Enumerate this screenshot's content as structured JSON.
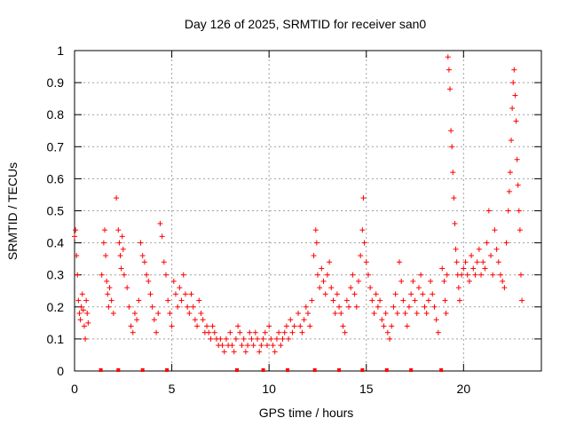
{
  "chart_data": {
    "type": "scatter",
    "title": "Day 126 of 2025, SRMTID for receiver san0",
    "xlabel": "GPS time / hours",
    "ylabel": "SRMTID / TECUs",
    "xlim": [
      0,
      24
    ],
    "ylim": [
      0,
      1
    ],
    "x_ticks": [
      0,
      5,
      10,
      15,
      20
    ],
    "y_ticks": [
      0,
      0.1,
      0.2,
      0.3,
      0.4,
      0.5,
      0.6,
      0.7,
      0.8,
      0.9,
      1
    ],
    "x_tick_labels": [
      "0",
      "5",
      "10",
      "15",
      "20"
    ],
    "y_tick_labels": [
      "0",
      "0.1",
      "0.2",
      "0.3",
      "0.4",
      "0.5",
      "0.6",
      "0.7",
      "0.8",
      "0.9",
      "1"
    ],
    "grid": true,
    "marker": "+",
    "marker_color": "#ff0000",
    "series": [
      {
        "name": "SRMTID",
        "points": [
          [
            0.0,
            0.42
          ],
          [
            0.05,
            0.44
          ],
          [
            0.1,
            0.36
          ],
          [
            0.15,
            0.3
          ],
          [
            0.2,
            0.22
          ],
          [
            0.25,
            0.18
          ],
          [
            0.3,
            0.16
          ],
          [
            0.35,
            0.2
          ],
          [
            0.4,
            0.24
          ],
          [
            0.45,
            0.19
          ],
          [
            0.5,
            0.14
          ],
          [
            0.55,
            0.1
          ],
          [
            0.6,
            0.22
          ],
          [
            0.65,
            0.18
          ],
          [
            0.7,
            0.15
          ],
          [
            1.4,
            0.3
          ],
          [
            1.5,
            0.4
          ],
          [
            1.55,
            0.44
          ],
          [
            1.6,
            0.36
          ],
          [
            1.65,
            0.28
          ],
          [
            1.7,
            0.24
          ],
          [
            1.75,
            0.2
          ],
          [
            1.8,
            0.26
          ],
          [
            1.9,
            0.22
          ],
          [
            2.0,
            0.18
          ],
          [
            2.15,
            0.54
          ],
          [
            2.25,
            0.44
          ],
          [
            2.3,
            0.4
          ],
          [
            2.35,
            0.36
          ],
          [
            2.4,
            0.32
          ],
          [
            2.45,
            0.42
          ],
          [
            2.5,
            0.38
          ],
          [
            2.55,
            0.3
          ],
          [
            2.7,
            0.26
          ],
          [
            2.8,
            0.2
          ],
          [
            2.9,
            0.14
          ],
          [
            3.0,
            0.12
          ],
          [
            3.1,
            0.18
          ],
          [
            3.2,
            0.16
          ],
          [
            3.3,
            0.22
          ],
          [
            3.4,
            0.4
          ],
          [
            3.5,
            0.36
          ],
          [
            3.6,
            0.34
          ],
          [
            3.7,
            0.3
          ],
          [
            3.8,
            0.28
          ],
          [
            3.9,
            0.24
          ],
          [
            4.0,
            0.2
          ],
          [
            4.1,
            0.16
          ],
          [
            4.2,
            0.12
          ],
          [
            4.3,
            0.18
          ],
          [
            4.4,
            0.46
          ],
          [
            4.5,
            0.42
          ],
          [
            4.6,
            0.34
          ],
          [
            4.7,
            0.3
          ],
          [
            4.8,
            0.22
          ],
          [
            4.9,
            0.18
          ],
          [
            5.0,
            0.14
          ],
          [
            5.1,
            0.28
          ],
          [
            5.2,
            0.24
          ],
          [
            5.3,
            0.2
          ],
          [
            5.4,
            0.26
          ],
          [
            5.5,
            0.22
          ],
          [
            5.6,
            0.3
          ],
          [
            5.7,
            0.24
          ],
          [
            5.8,
            0.2
          ],
          [
            5.9,
            0.18
          ],
          [
            6.0,
            0.24
          ],
          [
            6.1,
            0.2
          ],
          [
            6.2,
            0.16
          ],
          [
            6.3,
            0.14
          ],
          [
            6.4,
            0.22
          ],
          [
            6.5,
            0.18
          ],
          [
            6.6,
            0.16
          ],
          [
            6.7,
            0.12
          ],
          [
            6.8,
            0.14
          ],
          [
            6.9,
            0.12
          ],
          [
            7.0,
            0.1
          ],
          [
            7.1,
            0.14
          ],
          [
            7.2,
            0.12
          ],
          [
            7.3,
            0.1
          ],
          [
            7.4,
            0.08
          ],
          [
            7.5,
            0.1
          ],
          [
            7.6,
            0.08
          ],
          [
            7.7,
            0.06
          ],
          [
            7.8,
            0.1
          ],
          [
            7.9,
            0.08
          ],
          [
            8.0,
            0.12
          ],
          [
            8.1,
            0.08
          ],
          [
            8.2,
            0.06
          ],
          [
            8.3,
            0.1
          ],
          [
            8.4,
            0.14
          ],
          [
            8.5,
            0.12
          ],
          [
            8.6,
            0.08
          ],
          [
            8.7,
            0.1
          ],
          [
            8.8,
            0.06
          ],
          [
            8.9,
            0.08
          ],
          [
            9.0,
            0.12
          ],
          [
            9.1,
            0.1
          ],
          [
            9.2,
            0.08
          ],
          [
            9.3,
            0.12
          ],
          [
            9.4,
            0.1
          ],
          [
            9.5,
            0.06
          ],
          [
            9.6,
            0.08
          ],
          [
            9.7,
            0.1
          ],
          [
            9.8,
            0.12
          ],
          [
            9.9,
            0.08
          ],
          [
            10.0,
            0.14
          ],
          [
            10.1,
            0.1
          ],
          [
            10.2,
            0.08
          ],
          [
            10.3,
            0.06
          ],
          [
            10.4,
            0.1
          ],
          [
            10.5,
            0.12
          ],
          [
            10.6,
            0.08
          ],
          [
            10.7,
            0.1
          ],
          [
            10.8,
            0.12
          ],
          [
            10.9,
            0.14
          ],
          [
            11.0,
            0.1
          ],
          [
            11.1,
            0.16
          ],
          [
            11.2,
            0.12
          ],
          [
            11.3,
            0.14
          ],
          [
            11.5,
            0.18
          ],
          [
            11.6,
            0.14
          ],
          [
            11.7,
            0.12
          ],
          [
            11.8,
            0.16
          ],
          [
            11.9,
            0.2
          ],
          [
            12.0,
            0.18
          ],
          [
            12.1,
            0.14
          ],
          [
            12.2,
            0.22
          ],
          [
            12.3,
            0.36
          ],
          [
            12.4,
            0.44
          ],
          [
            12.45,
            0.4
          ],
          [
            12.5,
            0.3
          ],
          [
            12.6,
            0.26
          ],
          [
            12.7,
            0.32
          ],
          [
            12.8,
            0.28
          ],
          [
            12.9,
            0.24
          ],
          [
            13.0,
            0.3
          ],
          [
            13.1,
            0.34
          ],
          [
            13.2,
            0.26
          ],
          [
            13.3,
            0.22
          ],
          [
            13.4,
            0.18
          ],
          [
            13.5,
            0.24
          ],
          [
            13.6,
            0.2
          ],
          [
            13.7,
            0.18
          ],
          [
            13.8,
            0.14
          ],
          [
            13.9,
            0.12
          ],
          [
            14.0,
            0.22
          ],
          [
            14.1,
            0.2
          ],
          [
            14.2,
            0.26
          ],
          [
            14.3,
            0.3
          ],
          [
            14.4,
            0.24
          ],
          [
            14.5,
            0.2
          ],
          [
            14.6,
            0.28
          ],
          [
            14.7,
            0.36
          ],
          [
            14.8,
            0.44
          ],
          [
            14.85,
            0.54
          ],
          [
            14.9,
            0.4
          ],
          [
            15.0,
            0.34
          ],
          [
            15.1,
            0.3
          ],
          [
            15.2,
            0.26
          ],
          [
            15.3,
            0.22
          ],
          [
            15.4,
            0.18
          ],
          [
            15.5,
            0.24
          ],
          [
            15.6,
            0.2
          ],
          [
            15.7,
            0.22
          ],
          [
            15.8,
            0.16
          ],
          [
            15.9,
            0.14
          ],
          [
            16.0,
            0.18
          ],
          [
            16.1,
            0.12
          ],
          [
            16.2,
            0.1
          ],
          [
            16.3,
            0.14
          ],
          [
            16.4,
            0.2
          ],
          [
            16.5,
            0.24
          ],
          [
            16.6,
            0.18
          ],
          [
            16.7,
            0.34
          ],
          [
            16.8,
            0.28
          ],
          [
            16.9,
            0.22
          ],
          [
            17.0,
            0.18
          ],
          [
            17.1,
            0.14
          ],
          [
            17.2,
            0.2
          ],
          [
            17.3,
            0.24
          ],
          [
            17.4,
            0.28
          ],
          [
            17.5,
            0.22
          ],
          [
            17.6,
            0.18
          ],
          [
            17.7,
            0.26
          ],
          [
            17.8,
            0.3
          ],
          [
            17.9,
            0.24
          ],
          [
            18.0,
            0.2
          ],
          [
            18.1,
            0.18
          ],
          [
            18.2,
            0.22
          ],
          [
            18.3,
            0.28
          ],
          [
            18.4,
            0.24
          ],
          [
            18.5,
            0.2
          ],
          [
            18.6,
            0.16
          ],
          [
            18.7,
            0.12
          ],
          [
            18.9,
            0.32
          ],
          [
            19.0,
            0.28
          ],
          [
            19.05,
            0.22
          ],
          [
            19.1,
            0.18
          ],
          [
            19.15,
            0.3
          ],
          [
            19.2,
            0.98
          ],
          [
            19.25,
            0.94
          ],
          [
            19.3,
            0.88
          ],
          [
            19.35,
            0.75
          ],
          [
            19.4,
            0.7
          ],
          [
            19.45,
            0.62
          ],
          [
            19.5,
            0.54
          ],
          [
            19.55,
            0.46
          ],
          [
            19.6,
            0.38
          ],
          [
            19.65,
            0.34
          ],
          [
            19.7,
            0.3
          ],
          [
            19.75,
            0.26
          ],
          [
            19.8,
            0.22
          ],
          [
            19.9,
            0.3
          ],
          [
            20.0,
            0.32
          ],
          [
            20.1,
            0.34
          ],
          [
            20.2,
            0.3
          ],
          [
            20.3,
            0.28
          ],
          [
            20.4,
            0.36
          ],
          [
            20.5,
            0.32
          ],
          [
            20.6,
            0.3
          ],
          [
            20.7,
            0.34
          ],
          [
            20.8,
            0.38
          ],
          [
            20.9,
            0.3
          ],
          [
            21.0,
            0.34
          ],
          [
            21.1,
            0.32
          ],
          [
            21.2,
            0.4
          ],
          [
            21.3,
            0.5
          ],
          [
            21.4,
            0.36
          ],
          [
            21.5,
            0.3
          ],
          [
            21.6,
            0.44
          ],
          [
            21.7,
            0.38
          ],
          [
            21.8,
            0.34
          ],
          [
            21.9,
            0.3
          ],
          [
            22.0,
            0.28
          ],
          [
            22.1,
            0.26
          ],
          [
            22.2,
            0.4
          ],
          [
            22.3,
            0.5
          ],
          [
            22.35,
            0.56
          ],
          [
            22.4,
            0.62
          ],
          [
            22.45,
            0.72
          ],
          [
            22.5,
            0.82
          ],
          [
            22.55,
            0.9
          ],
          [
            22.6,
            0.94
          ],
          [
            22.65,
            0.86
          ],
          [
            22.7,
            0.78
          ],
          [
            22.75,
            0.66
          ],
          [
            22.8,
            0.58
          ],
          [
            22.85,
            0.5
          ],
          [
            22.9,
            0.44
          ],
          [
            22.95,
            0.3
          ],
          [
            23.0,
            0.22
          ]
        ]
      }
    ],
    "zero_markers": [
      1.35,
      2.25,
      3.5,
      4.75,
      8.35,
      9.7,
      10.95,
      12.35,
      13.6,
      14.8,
      16.05,
      17.3,
      18.85
    ]
  }
}
